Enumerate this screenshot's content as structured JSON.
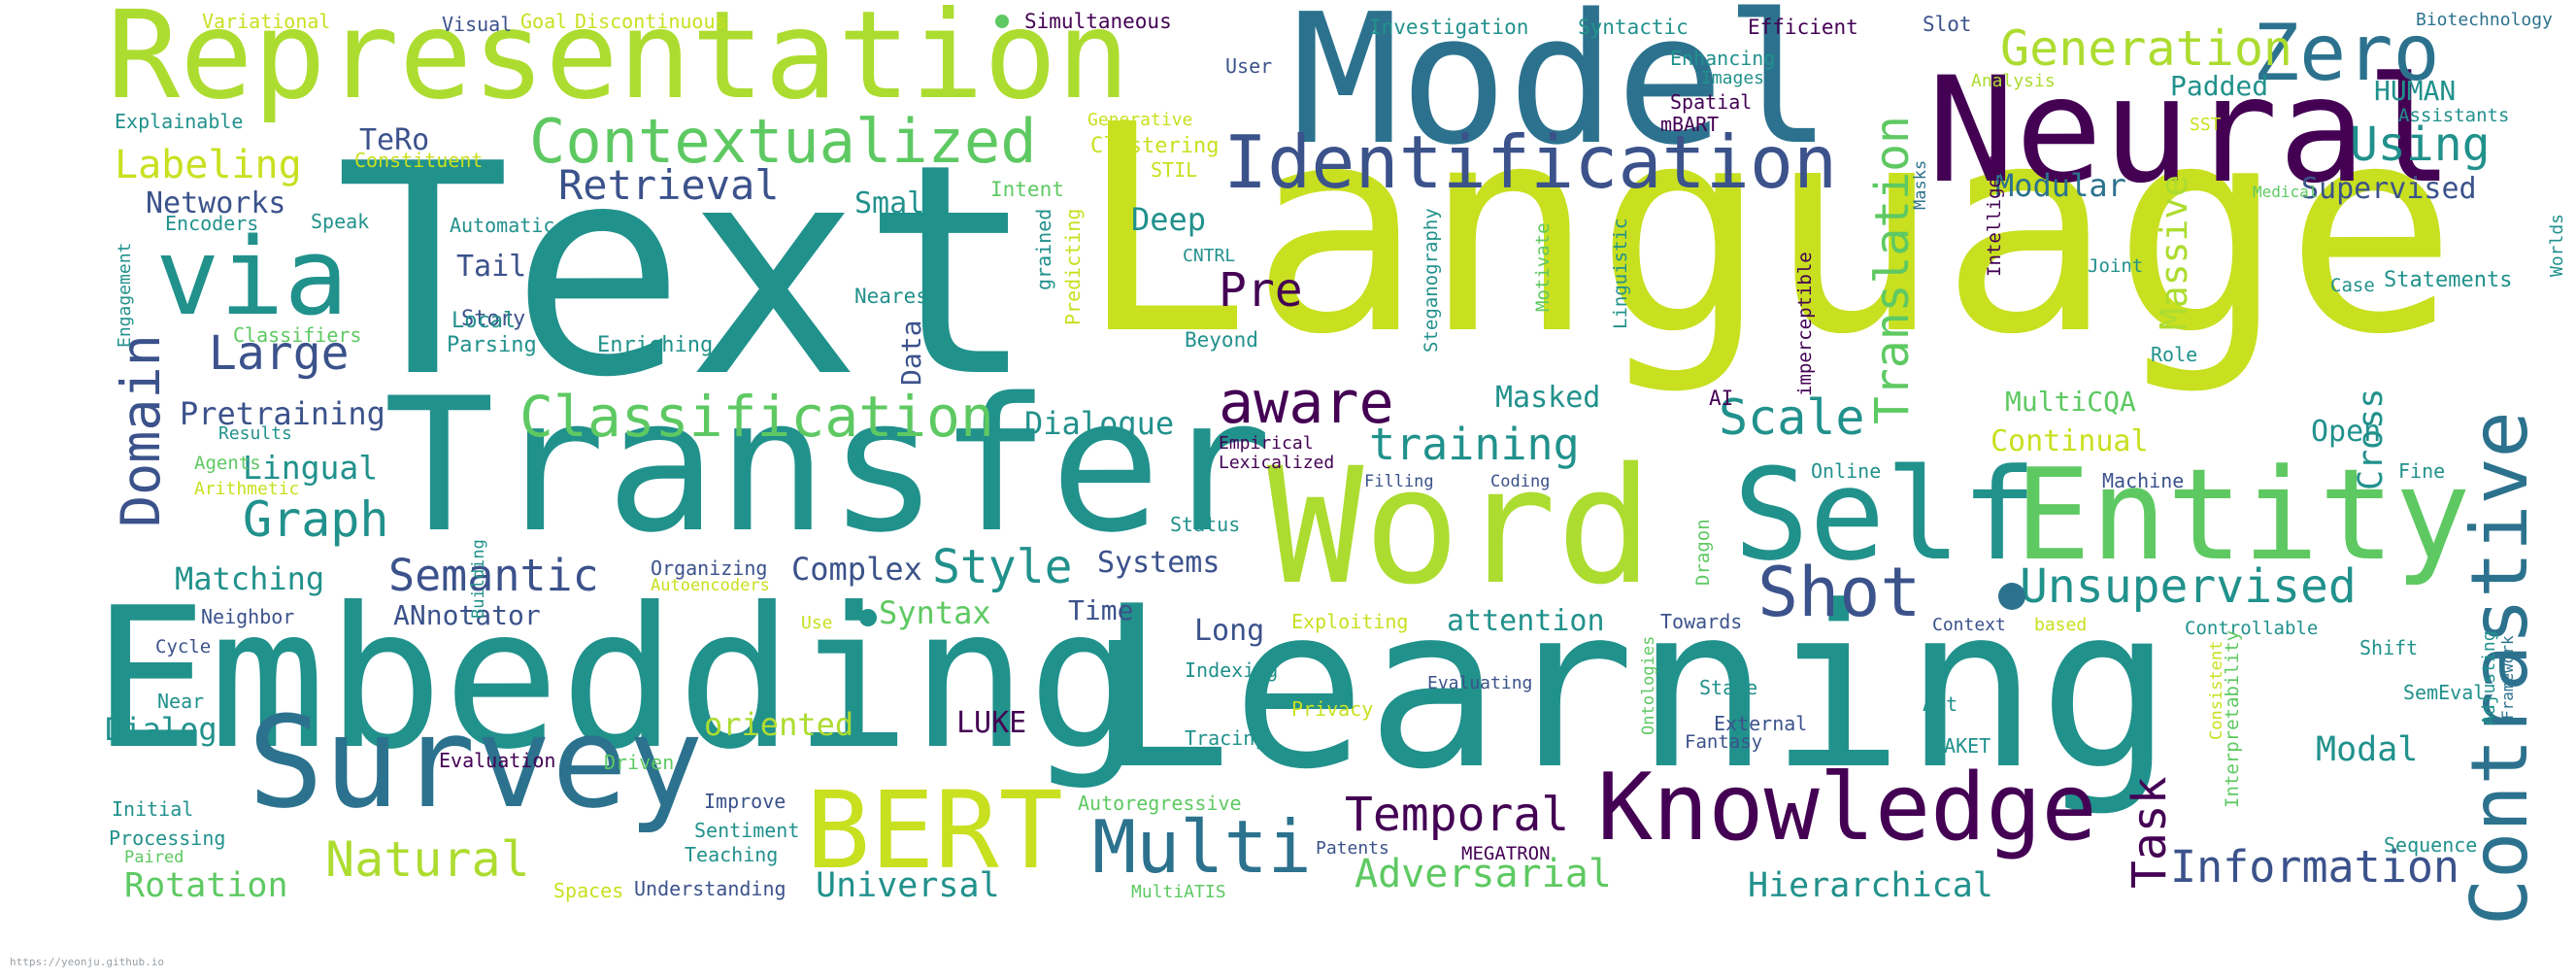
{
  "title": "",
  "footer_text": "https://yeonju.github.io",
  "palette": {
    "background": "#ffffff",
    "teal": "#21918c",
    "purple": "#440154",
    "indigo": "#3b528b",
    "green": "#5ec962",
    "yellow": "#c8e020",
    "lime": "#addc30",
    "midteal": "#2c728e",
    "lightgreen": "#7ad151"
  },
  "words": [
    "Text",
    "Language",
    "Transfer",
    "Embedding",
    "Learning",
    "Model",
    "Neural",
    "Representation",
    "Word",
    "Self",
    "Entity",
    "Survey",
    "BERT",
    "Knowledge",
    "Contrastive",
    "Identification",
    "Contextualized",
    "Classification",
    "Domain",
    "via",
    "Shot",
    "Unsupervised",
    "Multi",
    "Information",
    "Translation",
    "Zero",
    "Generation",
    "aware",
    "Style",
    "Semantic",
    "Graph",
    "Large",
    "Retrieval",
    "Natural",
    "Temporal",
    "Adversarial",
    "Task",
    "Pre",
    "training",
    "Scale",
    "Using",
    "Hierarchical",
    "Universal",
    "Rotation",
    "Labeling",
    "Dialogue",
    "Matching",
    "Pretraining",
    "Lingual",
    "Complex",
    "Systems",
    "Syntax",
    "Masked",
    "attention",
    "Long",
    "Time",
    "Dialog",
    "oriented",
    "LUKE",
    "Modal",
    "Continual",
    "Open",
    "Cross",
    "MultiCQA",
    "Massive",
    "Modular",
    "Supervised",
    "HUMAN",
    "Padded",
    "Networks",
    "TeRo",
    "Tail",
    "Small",
    "Deep",
    "Data",
    "ANnotator",
    "Variational",
    "Visual",
    "Goal",
    "Discontinuous",
    "Simultaneous",
    "Investigation",
    "Syntactic",
    "Efficient",
    "Slot",
    "Biotechnology",
    "Explainable",
    "Constituent",
    "Generative",
    "Clustering",
    "STIL",
    "Intent",
    "User",
    "Enhancing",
    "Images",
    "Spatial",
    "mBART",
    "Analysis",
    "SST",
    "Assistants",
    "Medical",
    "Encoders",
    "Speak",
    "Automatic",
    "CNTRL",
    "Story",
    "Local",
    "Parsing",
    "Enriching",
    "Classifiers",
    "Engagement",
    "Nearest",
    "grained",
    "Predicting",
    "Beyond",
    "Steganography",
    "Motivate",
    "Linguistic",
    "imperceptible",
    "Intelligent",
    "Masks",
    "Joint",
    "Worlds",
    "Statements",
    "Case",
    "Role",
    "AI",
    "Results",
    "Agents",
    "Arithmetic",
    "Empirical",
    "Lexicalized",
    "Filling",
    "Coding",
    "Online",
    "Machine",
    "Fine",
    "Building",
    "Status",
    "Dragon",
    "Organizing",
    "Autoencoders",
    "Neighbor",
    "Use",
    "Exploiting",
    "Towards",
    "Context",
    "based",
    "Controllable",
    "Adjusting",
    "Framework",
    "Cycle",
    "Near",
    "Indexing",
    "Evaluating",
    "Ontologies",
    "Interpretability",
    "Consistent",
    "Shift",
    "SemEval",
    "State",
    "Act",
    "Privacy",
    "External",
    "Fantasy",
    "Tracing",
    "JAKET",
    "Evaluation",
    "Driven",
    "Initial",
    "Improve",
    "Sentiment",
    "Processing",
    "Paired",
    "Teaching",
    "Autoregressive",
    "Sequence",
    "Patents",
    "MEGATRON",
    "Spaces",
    "Understanding",
    "MultiATIS"
  ]
}
